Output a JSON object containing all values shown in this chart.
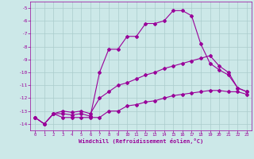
{
  "xlabel": "Windchill (Refroidissement éolien,°C)",
  "bg_color": "#cce8e8",
  "grid_color": "#aacccc",
  "line_color": "#990099",
  "xlim": [
    -0.5,
    23.5
  ],
  "ylim": [
    -14.5,
    -4.5
  ],
  "yticks": [
    -14,
    -13,
    -12,
    -11,
    -10,
    -9,
    -8,
    -7,
    -6,
    -5
  ],
  "xticks": [
    0,
    1,
    2,
    3,
    4,
    5,
    6,
    7,
    8,
    9,
    10,
    11,
    12,
    13,
    14,
    15,
    16,
    17,
    18,
    19,
    20,
    21,
    22,
    23
  ],
  "line1_x": [
    0,
    1,
    2,
    3,
    4,
    5,
    6,
    7,
    8,
    9,
    10,
    11,
    12,
    13,
    14,
    15,
    16,
    17,
    18,
    19,
    20,
    21,
    22,
    23
  ],
  "line1_y": [
    -13.5,
    -14.0,
    -13.2,
    -13.2,
    -13.3,
    -13.2,
    -13.4,
    -10.0,
    -8.2,
    -8.2,
    -7.2,
    -7.2,
    -6.2,
    -6.2,
    -6.0,
    -5.2,
    -5.2,
    -5.6,
    -7.8,
    -9.3,
    -9.8,
    -10.2,
    -11.2,
    -11.5
  ],
  "line2_x": [
    0,
    1,
    2,
    3,
    4,
    5,
    6,
    7,
    8,
    9,
    10,
    11,
    12,
    13,
    14,
    15,
    16,
    17,
    18,
    19,
    20,
    21,
    22,
    23
  ],
  "line2_y": [
    -13.5,
    -14.0,
    -13.2,
    -13.0,
    -13.1,
    -13.0,
    -13.2,
    -12.0,
    -11.5,
    -11.0,
    -10.8,
    -10.5,
    -10.2,
    -10.0,
    -9.7,
    -9.5,
    -9.3,
    -9.1,
    -8.9,
    -8.7,
    -9.5,
    -10.0,
    -11.2,
    -11.5
  ],
  "line3_x": [
    0,
    1,
    2,
    3,
    4,
    5,
    6,
    7,
    8,
    9,
    10,
    11,
    12,
    13,
    14,
    15,
    16,
    17,
    18,
    19,
    20,
    21,
    22,
    23
  ],
  "line3_y": [
    -13.5,
    -14.0,
    -13.2,
    -13.5,
    -13.5,
    -13.5,
    -13.5,
    -13.5,
    -13.0,
    -13.0,
    -12.6,
    -12.5,
    -12.3,
    -12.2,
    -12.0,
    -11.8,
    -11.7,
    -11.6,
    -11.5,
    -11.4,
    -11.4,
    -11.5,
    -11.5,
    -11.7
  ]
}
